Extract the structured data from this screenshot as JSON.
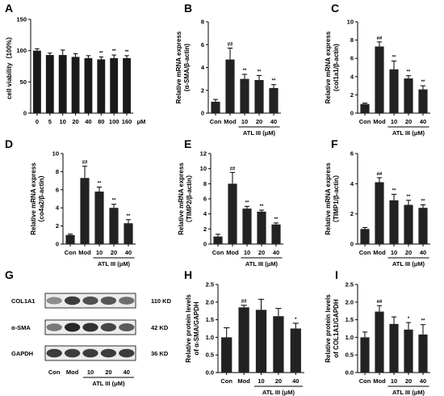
{
  "chart_data": [
    {
      "panel": "A",
      "type": "bar",
      "categories": [
        "0",
        "5",
        "10",
        "20",
        "40",
        "80",
        "100",
        "160"
      ],
      "values": [
        100,
        93,
        93,
        90,
        88,
        86,
        88,
        88
      ],
      "errors": [
        3,
        3,
        8,
        5,
        4,
        4,
        5,
        4
      ],
      "significance": [
        "",
        "",
        "",
        "",
        "",
        "**",
        "**",
        "**"
      ],
      "ylabel": "cell viability（100%）",
      "xlabel": "",
      "xunit": "μM",
      "ylim": [
        0,
        150
      ],
      "yticks": [
        "0",
        "50",
        "100",
        "150"
      ],
      "group_label": "",
      "bar_color": "#222222"
    },
    {
      "panel": "B",
      "type": "bar",
      "categories": [
        "Con",
        "Mod",
        "10",
        "20",
        "40"
      ],
      "values": [
        1.0,
        4.7,
        3.0,
        2.9,
        2.2
      ],
      "errors": [
        0.2,
        1.0,
        0.4,
        0.4,
        0.3
      ],
      "significance": [
        "",
        "##",
        "**",
        "**",
        "**"
      ],
      "ylabel_line1": "Relative mRNA express",
      "ylabel_line2": "(α-SMA/β-actin)",
      "ylim": [
        0,
        8
      ],
      "yticks": [
        "0",
        "2",
        "4",
        "6",
        "8"
      ],
      "group_label": "ATL III (μM)"
    },
    {
      "panel": "C",
      "type": "bar",
      "categories": [
        "Con",
        "Mod",
        "10",
        "20",
        "40"
      ],
      "values": [
        1.0,
        7.3,
        4.8,
        3.8,
        2.6
      ],
      "errors": [
        0.1,
        0.5,
        0.9,
        0.3,
        0.4
      ],
      "significance": [
        "",
        "##",
        "**",
        "**",
        "**"
      ],
      "ylabel_line1": "Relative mRNA express",
      "ylabel_line2": "(col1a1/β-actin)",
      "ylim": [
        0,
        10
      ],
      "yticks": [
        "0",
        "2",
        "4",
        "6",
        "8",
        "10"
      ],
      "group_label": "ATL III (μM)"
    },
    {
      "panel": "D",
      "type": "bar",
      "categories": [
        "Con",
        "Mod",
        "10",
        "20",
        "40"
      ],
      "values": [
        1.0,
        7.3,
        5.8,
        4.0,
        2.3
      ],
      "errors": [
        0.1,
        1.3,
        0.5,
        0.4,
        0.4
      ],
      "significance": [
        "",
        "##",
        "**",
        "**",
        "**"
      ],
      "ylabel_line1": "Relative mRNA express",
      "ylabel_line2": "（co4a2/β-actin）",
      "ylim": [
        0,
        10
      ],
      "yticks": [
        "0",
        "2",
        "4",
        "6",
        "8",
        "10"
      ],
      "group_label": "ATL III (μM)"
    },
    {
      "panel": "E",
      "type": "bar",
      "categories": [
        "Con",
        "Mod",
        "10",
        "20",
        "40"
      ],
      "values": [
        1.0,
        8.0,
        4.7,
        4.3,
        2.6
      ],
      "errors": [
        0.3,
        1.5,
        0.3,
        0.2,
        0.2
      ],
      "significance": [
        "",
        "##",
        "**",
        "**",
        "**"
      ],
      "ylabel_line1": "Relative mRNA express",
      "ylabel_line2": "（TIMP2/β-actin）",
      "ylim": [
        0,
        12
      ],
      "yticks": [
        "0",
        "2",
        "4",
        "6",
        "8",
        "10",
        "12"
      ],
      "group_label": "ATL III (μM)"
    },
    {
      "panel": "F",
      "type": "bar",
      "categories": [
        "Con",
        "Mod",
        "10",
        "20",
        "40"
      ],
      "values": [
        1.0,
        4.1,
        2.9,
        2.6,
        2.4
      ],
      "errors": [
        0.1,
        0.3,
        0.4,
        0.3,
        0.2
      ],
      "significance": [
        "",
        "##",
        "**",
        "**",
        "**"
      ],
      "ylabel_line1": "Relative mRNA express",
      "ylabel_line2": "（TIMP1/β-actin）",
      "ylim": [
        0,
        6
      ],
      "yticks": [
        "0",
        "2",
        "4",
        "6"
      ],
      "group_label": "ATL III (μM)"
    },
    {
      "panel": "H",
      "type": "bar",
      "categories": [
        "Con",
        "Mod",
        "10",
        "20",
        "40"
      ],
      "values": [
        1.0,
        1.85,
        1.78,
        1.6,
        1.25
      ],
      "errors": [
        0.27,
        0.06,
        0.3,
        0.22,
        0.15
      ],
      "significance": [
        "",
        "##",
        "",
        "",
        "*"
      ],
      "ylabel_line1": "Relative protein levels",
      "ylabel_line2": "of α-SMA/GAPDH",
      "ylim": [
        0,
        2.5
      ],
      "yticks": [
        "0.0",
        "0.5",
        "1.0",
        "1.5",
        "2.0",
        "2.5"
      ],
      "group_label": "ATL III (μM)"
    },
    {
      "panel": "I",
      "type": "bar",
      "categories": [
        "Con",
        "Mod",
        "10",
        "20",
        "40"
      ],
      "values": [
        1.0,
        1.73,
        1.38,
        1.22,
        1.08
      ],
      "errors": [
        0.15,
        0.17,
        0.2,
        0.2,
        0.28
      ],
      "significance": [
        "",
        "##",
        "",
        "*",
        "**"
      ],
      "ylabel_line1": "Relative protein levels",
      "ylabel_line2": "of COL1A1/GAPDH",
      "ylim": [
        0,
        2.5
      ],
      "yticks": [
        "0.0",
        "0.5",
        "1.0",
        "1.5",
        "2.0",
        "2.5"
      ],
      "group_label": "ATL III (μM)"
    }
  ],
  "blot": {
    "panel": "G",
    "bands": [
      {
        "name": "COL1A1",
        "size": "110 KD",
        "intensities": [
          0.45,
          0.85,
          0.75,
          0.72,
          0.6
        ]
      },
      {
        "name": "α-SMA",
        "size": "42 KD",
        "intensities": [
          0.55,
          0.95,
          0.9,
          0.8,
          0.7
        ]
      },
      {
        "name": "GAPDH",
        "size": "36 KD",
        "intensities": [
          0.85,
          0.85,
          0.85,
          0.85,
          0.85
        ]
      }
    ],
    "lanes": [
      "Con",
      "Mod",
      "10",
      "20",
      "40"
    ],
    "group_label": "ATL III (μM)"
  }
}
